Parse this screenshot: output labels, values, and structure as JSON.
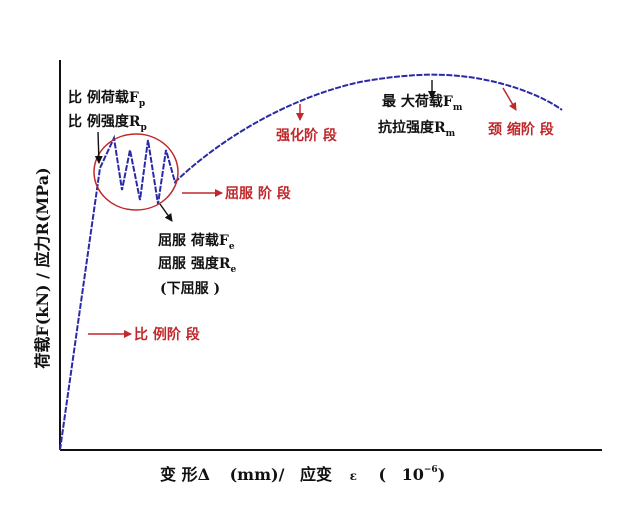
{
  "axes": {
    "x_title": {
      "part1": "变 形Δ",
      "part2": "(mm)/",
      "part3": "应变",
      "part4": "ε",
      "part5": "(",
      "part6": "10",
      "part6_exp": "−6",
      "part7": ")"
    },
    "y_title": "荷载F(kN) / 应力R(MPa)"
  },
  "annotations": {
    "proportional_load": {
      "text": "比 例荷载F",
      "sub": "p"
    },
    "proportional_strength": {
      "text": "比 例强度R",
      "sub": "p"
    },
    "yield_load": {
      "text": "屈服 荷载F",
      "sub": "e"
    },
    "yield_strength": {
      "text": "屈服 强度R",
      "sub": "e"
    },
    "lower_yield": "(下屈服 )",
    "max_load": {
      "text": "最 大荷载F",
      "sub": "m"
    },
    "tensile_strength": {
      "text": "抗拉强度R",
      "sub": "m"
    }
  },
  "stages": {
    "proportional": "比 例阶 段",
    "yield": "屈服 阶 段",
    "strengthening": "强化阶 段",
    "necking": "颈 缩阶 段"
  },
  "colors": {
    "curve": "#2a2aa8",
    "stage_label": "#c0282b",
    "ellipse": "#c0282b",
    "text": "#111111"
  }
}
